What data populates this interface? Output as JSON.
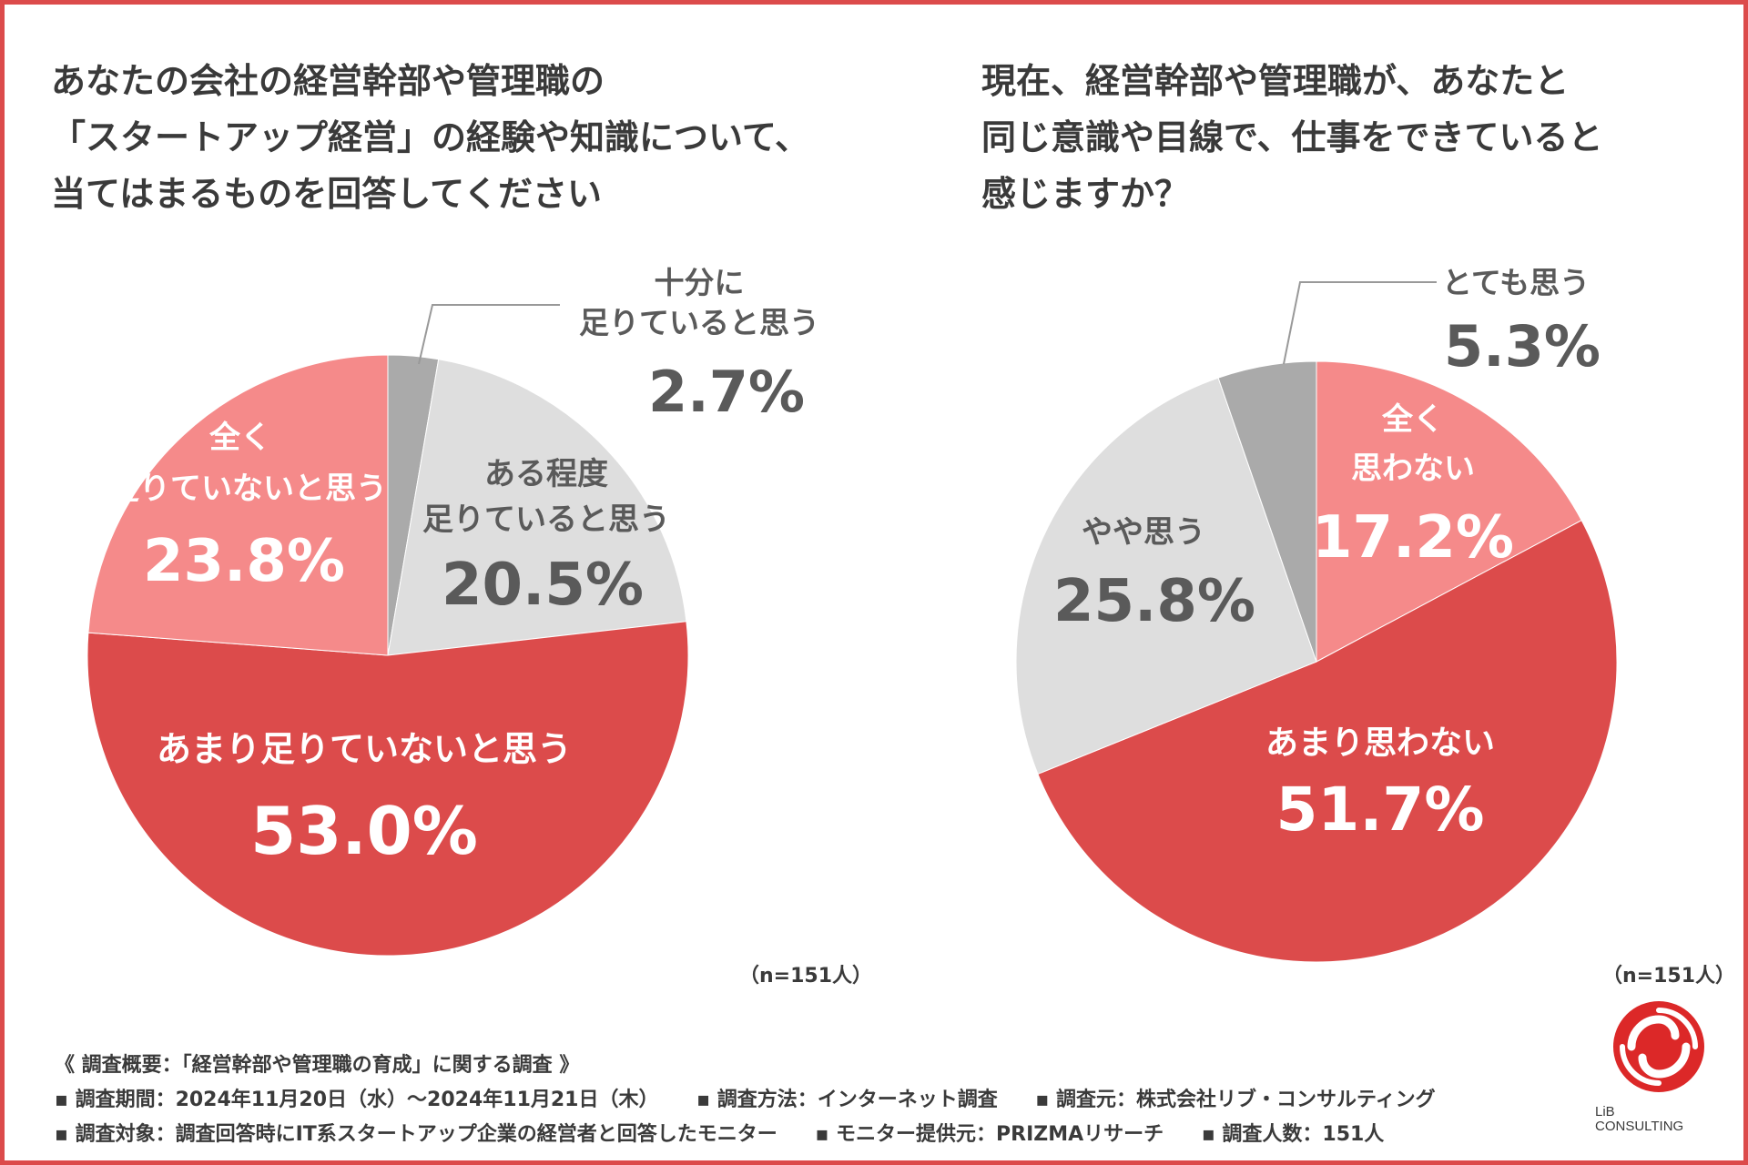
{
  "colors": {
    "strong": "#dc4b4b",
    "light": "#f58a8a",
    "pale": "#dedede",
    "gray": "#aaaaaa",
    "dark_text": "#5a5a5a",
    "white_text": "#ffffff"
  },
  "chart_data": [
    {
      "type": "pie",
      "title": "あなたの会社の経営幹部や管理職の\n「スタートアップ経営」の経験や知識について、\n当てはまるものを回答してください",
      "note": "（n=151人）",
      "slices": [
        {
          "label": "十分に\n足りていると思う",
          "value": 2.7,
          "display": "2.7%",
          "color": "#aaaaaa"
        },
        {
          "label": "ある程度\n足りていると思う",
          "value": 20.5,
          "display": "20.5%",
          "color": "#dedede"
        },
        {
          "label": "あまり足りていないと思う",
          "value": 53.0,
          "display": "53.0%",
          "color": "#dc4b4b"
        },
        {
          "label": "全く\n足りていないと思う",
          "value": 23.8,
          "display": "23.8%",
          "color": "#f58a8a"
        }
      ]
    },
    {
      "type": "pie",
      "title": "現在、経営幹部や管理職が、あなたと\n同じ意識や目線で、仕事をできていると\n感じますか？",
      "note": "（n=151人）",
      "slices": [
        {
          "label": "全く\n思わない",
          "value": 17.2,
          "display": "17.2%",
          "color": "#f58a8a"
        },
        {
          "label": "あまり思わない",
          "value": 51.7,
          "display": "51.7%",
          "color": "#dc4b4b"
        },
        {
          "label": "やや思う",
          "value": 25.8,
          "display": "25.8%",
          "color": "#dedede"
        },
        {
          "label": "とても思う",
          "value": 5.3,
          "display": "5.3%",
          "color": "#aaaaaa"
        }
      ]
    }
  ],
  "footer": {
    "summary": "《 調査概要：「経営幹部や管理職の育成」に関する調査 》",
    "period": "▪ 調査期間：2024年11月20日（水）～2024年11月21日（木）",
    "method": "▪ 調査方法：インターネット調査",
    "source": "▪ 調査元：株式会社リブ・コンサルティング",
    "target": "▪ 調査対象：調査回答時にIT系スタートアップ企業の経営者と回答したモニター",
    "provider": "▪ モニター提供元：PRIZMAリサーチ",
    "count": "▪ 調査人数：151人"
  },
  "logo": {
    "line1": "LiB",
    "line2": "CONSULTING"
  }
}
